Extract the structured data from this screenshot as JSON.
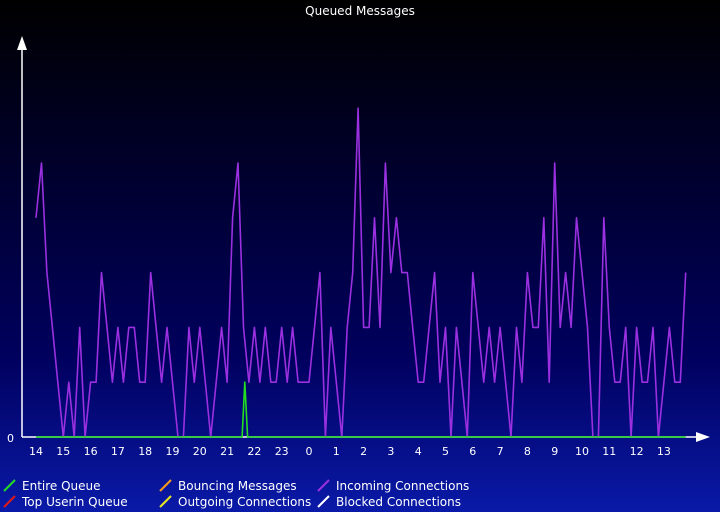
{
  "chart_data": {
    "type": "line",
    "title": "Queued Messages",
    "y_tick_labels": [
      "0"
    ],
    "ylim": [
      0,
      7
    ],
    "x_tick_labels": [
      "14",
      "15",
      "16",
      "17",
      "18",
      "19",
      "20",
      "21",
      "22",
      "23",
      "0",
      "1",
      "2",
      "3",
      "4",
      "5",
      "6",
      "7",
      "8",
      "9",
      "10",
      "11",
      "12",
      "13"
    ],
    "legend_position": "bottom",
    "series": [
      {
        "name": "Incoming Connections",
        "color": "#9a30e0",
        "x": [
          0,
          0.2,
          0.4,
          0.6,
          0.8,
          1,
          1.2,
          1.4,
          1.6,
          1.8,
          2,
          2.2,
          2.4,
          2.6,
          2.8,
          3,
          3.2,
          3.4,
          3.6,
          3.8,
          4,
          4.2,
          4.4,
          4.6,
          4.8,
          5,
          5.2,
          5.4,
          5.6,
          5.8,
          6,
          6.2,
          6.4,
          6.6,
          6.8,
          7,
          7.2,
          7.4,
          7.6,
          7.8,
          8,
          8.2,
          8.4,
          8.6,
          8.8,
          9,
          9.2,
          9.4,
          9.6,
          9.8,
          10,
          10.2,
          10.4,
          10.6,
          10.8,
          11,
          11.2,
          11.4,
          11.6,
          11.8,
          12,
          12.2,
          12.4,
          12.6,
          12.8,
          13,
          13.2,
          13.4,
          13.6,
          13.8,
          14,
          14.2,
          14.4,
          14.6,
          14.8,
          15,
          15.2,
          15.4,
          15.6,
          15.8,
          16,
          16.2,
          16.4,
          16.6,
          16.8,
          17,
          17.2,
          17.4,
          17.6,
          17.8,
          18,
          18.2,
          18.4,
          18.6,
          18.8,
          19,
          19.2,
          19.4,
          19.6,
          19.8,
          20,
          20.2,
          20.4,
          20.6,
          20.8,
          21,
          21.2,
          21.4,
          21.6,
          21.8,
          22,
          22.2,
          22.4,
          22.6,
          22.8,
          23,
          23.2,
          23.4,
          23.6,
          23.8
        ],
        "values": [
          4,
          5,
          3,
          2,
          1,
          0,
          1,
          0,
          2,
          0,
          1,
          1,
          3,
          2,
          1,
          2,
          1,
          2,
          2,
          1,
          1,
          3,
          2,
          1,
          2,
          1,
          0,
          0,
          2,
          1,
          2,
          1,
          0,
          1,
          2,
          1,
          4,
          5,
          2,
          1,
          2,
          1,
          2,
          1,
          1,
          2,
          1,
          2,
          1,
          1,
          1,
          2,
          3,
          0,
          2,
          1,
          0,
          2,
          3,
          6,
          2,
          2,
          4,
          2,
          5,
          3,
          4,
          3,
          3,
          2,
          1,
          1,
          2,
          3,
          1,
          2,
          0,
          2,
          1,
          0,
          3,
          2,
          1,
          2,
          1,
          2,
          1,
          0,
          2,
          1,
          3,
          2,
          2,
          4,
          1,
          5,
          2,
          3,
          2,
          4,
          3,
          2,
          0,
          0,
          4,
          2,
          1,
          1,
          2,
          0,
          2,
          1,
          1,
          2,
          0,
          1,
          2,
          1,
          1,
          3
        ]
      },
      {
        "name": "Entire Queue",
        "color": "#22dd22",
        "x": [
          0,
          7.55,
          7.65,
          7.75,
          23.8
        ],
        "values": [
          0,
          0,
          1,
          0,
          0
        ]
      }
    ],
    "legend": [
      {
        "name": "Entire Queue",
        "color": "#22dd22"
      },
      {
        "name": "Top Userin Queue",
        "color": "#e01818"
      },
      {
        "name": "Bouncing Messages",
        "color": "#ff9a1a"
      },
      {
        "name": "Outgoing Connections",
        "color": "#e8e820"
      },
      {
        "name": "Incoming Connections",
        "color": "#9a30e0"
      },
      {
        "name": "Blocked Connections",
        "color": "#ffffff"
      }
    ]
  }
}
